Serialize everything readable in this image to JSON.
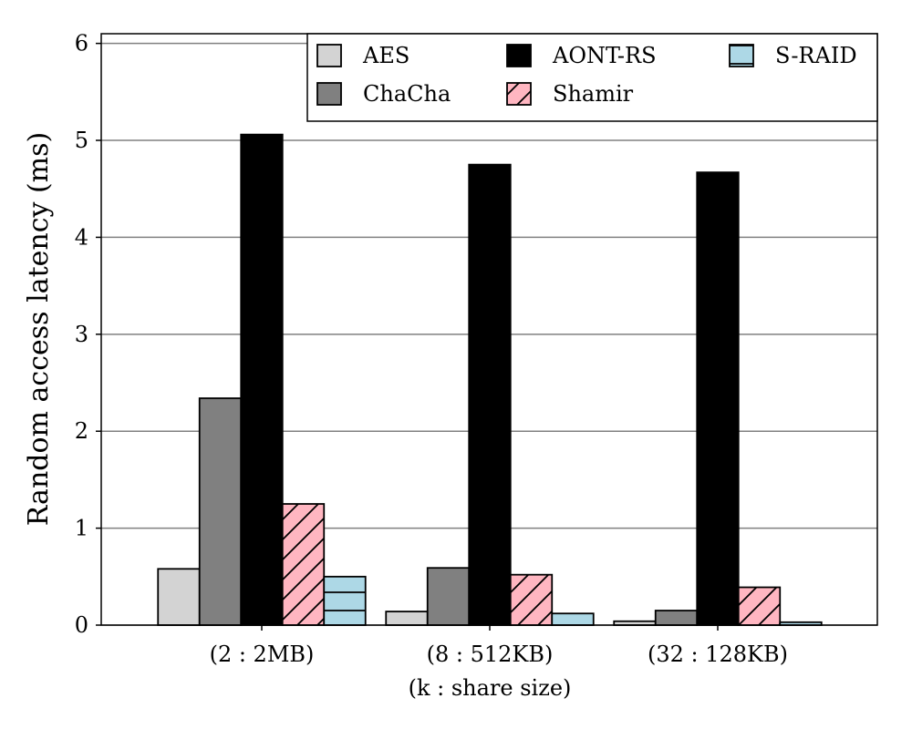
{
  "chart_data": {
    "type": "bar",
    "title": "",
    "ylabel": "Random access latency (ms)",
    "xlabel": "(k : share size)",
    "categories": [
      "(2 : 2MB)",
      "(8 : 512KB)",
      "(32 : 128KB)"
    ],
    "ylim": [
      0,
      6.1
    ],
    "yticks": [
      0,
      1,
      2,
      3,
      4,
      5,
      6
    ],
    "grid": "horizontal",
    "legend_position": "top-right",
    "series": [
      {
        "name": "AES",
        "values": [
          0.58,
          0.14,
          0.04
        ],
        "color": "#d3d3d3",
        "hatch": "none"
      },
      {
        "name": "ChaCha",
        "values": [
          2.34,
          0.59,
          0.15
        ],
        "color": "#808080",
        "hatch": "none"
      },
      {
        "name": "AONT-RS",
        "values": [
          5.06,
          4.75,
          4.67
        ],
        "color": "#000000",
        "hatch": "none"
      },
      {
        "name": "Shamir",
        "values": [
          1.25,
          0.52,
          0.39
        ],
        "color": "#ffb6c1",
        "hatch": "diagonal"
      },
      {
        "name": "S-RAID",
        "values": [
          0.5,
          0.12,
          0.03
        ],
        "color": "#add8e6",
        "hatch": "horizontal"
      }
    ]
  }
}
